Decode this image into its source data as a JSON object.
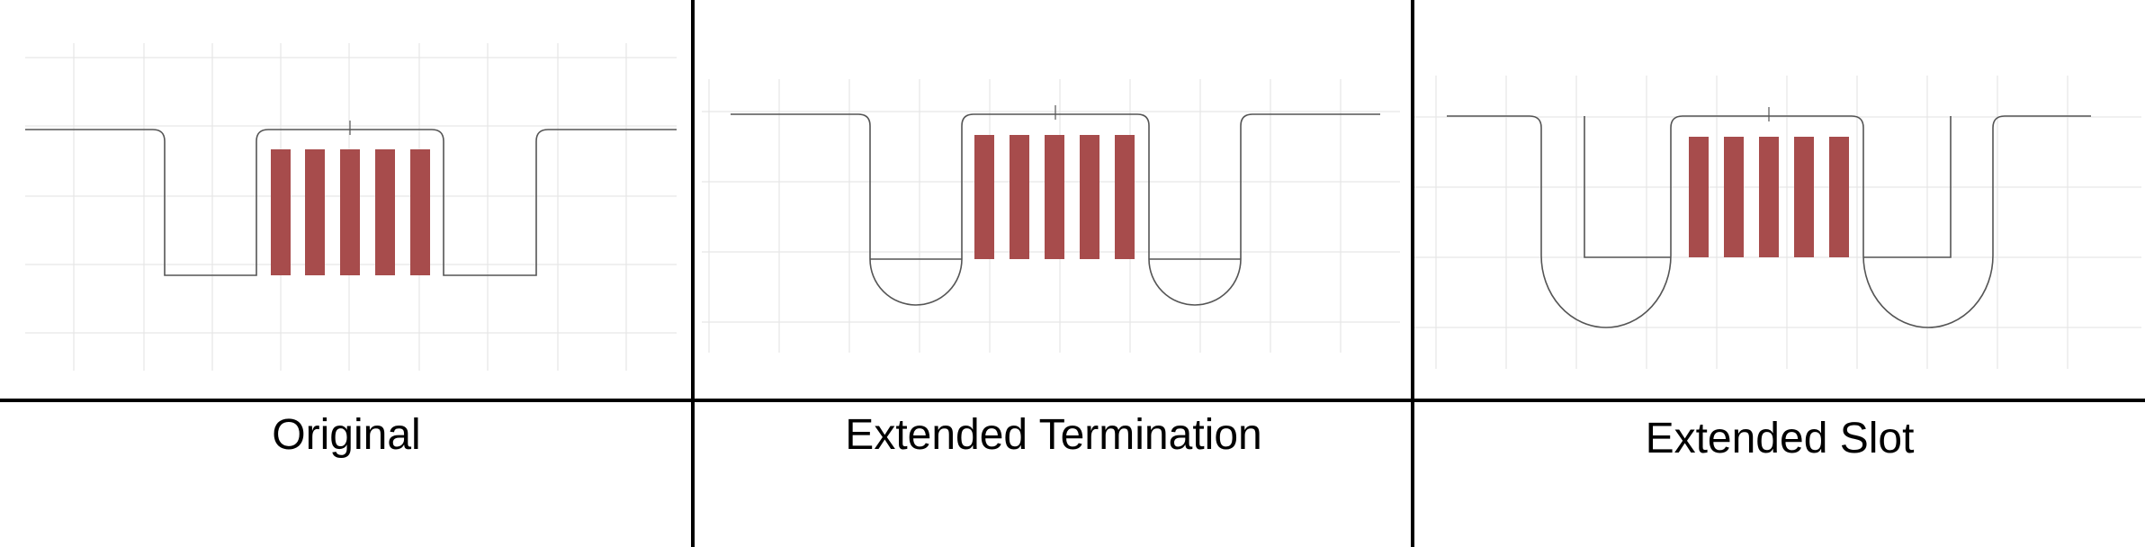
{
  "panels": [
    {
      "id": "original",
      "caption": "Original"
    },
    {
      "id": "extended-termination",
      "caption": "Extended Termination"
    },
    {
      "id": "extended-slot",
      "caption": "Extended Slot"
    }
  ],
  "colors": {
    "background": "#ffffff",
    "grid": "#e6e6e6",
    "outline": "#555555",
    "divider": "#000000",
    "finger": "#a74c4c"
  },
  "finger_count": 5
}
